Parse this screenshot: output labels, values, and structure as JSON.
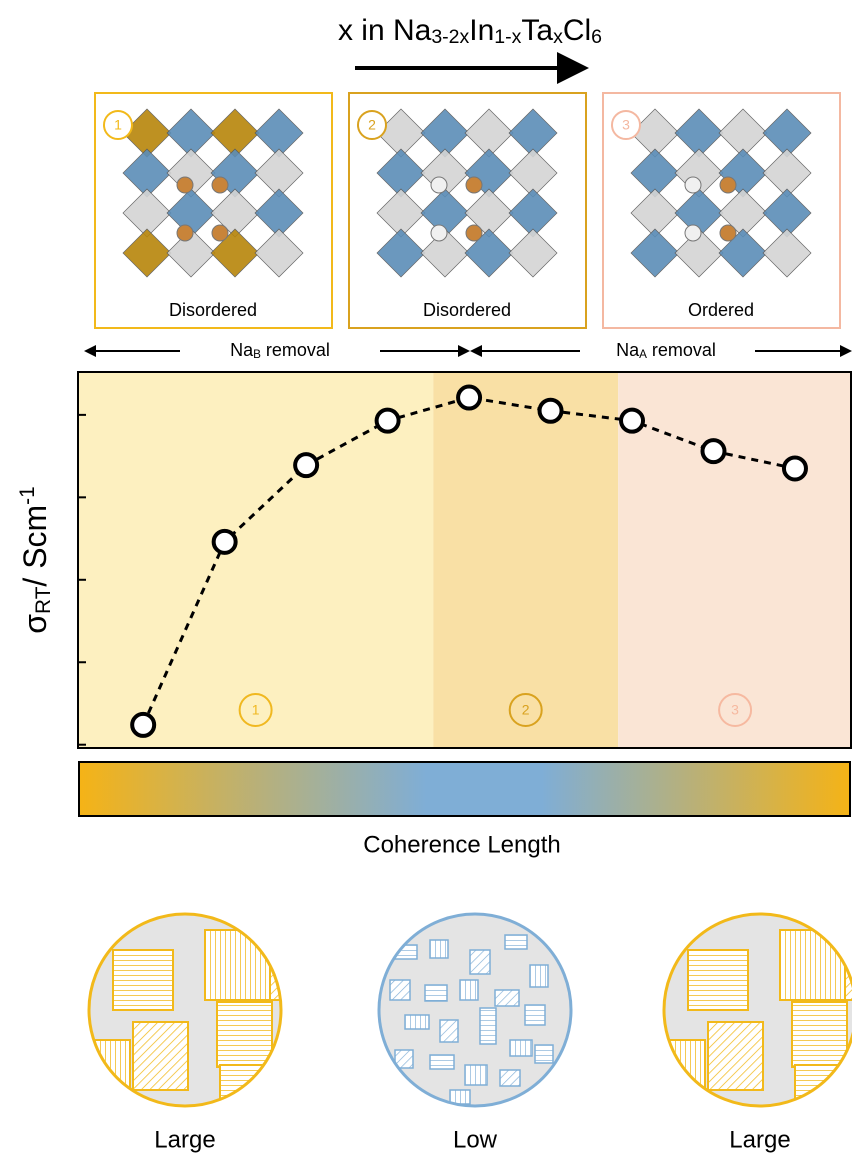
{
  "chart_data": {
    "type": "scatter",
    "title": [
      {
        "text": "x in Na"
      },
      {
        "text": "3-2x",
        "sub": true
      },
      {
        "text": "In"
      },
      {
        "text": "1-x",
        "sub": true
      },
      {
        "text": "Ta"
      },
      {
        "text": "x",
        "sub": true
      },
      {
        "text": "Cl"
      },
      {
        "text": "6",
        "sub": true
      }
    ],
    "y_label": [
      {
        "text": "σ"
      },
      {
        "text": "RT",
        "sub": true
      },
      {
        "text": "/ Scm"
      },
      {
        "text": "-1",
        "sup": true
      }
    ],
    "x": [
      1,
      2,
      3,
      4,
      5,
      6,
      7,
      8,
      9
    ],
    "values": [
      -6.76,
      -4.54,
      -3.61,
      -3.07,
      -2.79,
      -2.95,
      -3.07,
      -3.44,
      -3.65
    ],
    "xlim": [
      0.2,
      9.7
    ],
    "ylim": [
      -7.04,
      -2.48
    ],
    "yticks": [
      -7,
      -6,
      -5,
      -4,
      -3
    ],
    "regions": [
      {
        "label": "1",
        "x0": 0.2,
        "x1": 4.56,
        "color": "#fdf0c0",
        "label_color": "#f0b820"
      },
      {
        "label": "2",
        "x0": 4.56,
        "x1": 6.83,
        "color": "#f9e0a5",
        "label_color": "#d9a21f"
      },
      {
        "label": "3",
        "x0": 6.83,
        "x1": 9.7,
        "color": "#fae5d5",
        "label_color": "#f6b9a0"
      }
    ],
    "removal": [
      [
        {
          "text": "Na"
        },
        {
          "text": "B",
          "sub": true
        },
        {
          "text": " removal"
        }
      ],
      [
        {
          "text": "Na"
        },
        {
          "text": "A",
          "sub": true
        },
        {
          "text": " removal"
        }
      ]
    ]
  },
  "panels": [
    {
      "number": "1",
      "label": "Disordered",
      "color": "#f2b91a"
    },
    {
      "number": "2",
      "label": "Disordered",
      "color": "#d9a21f"
    },
    {
      "number": "3",
      "label": "Ordered",
      "color": "#f4b8a1"
    }
  ],
  "gradient_title": "Coherence Length",
  "domains": [
    {
      "label": "Large",
      "color": "#f2b91a"
    },
    {
      "label": "Low",
      "color": "#7faed6"
    },
    {
      "label": "Large",
      "color": "#f2b91a"
    }
  ]
}
